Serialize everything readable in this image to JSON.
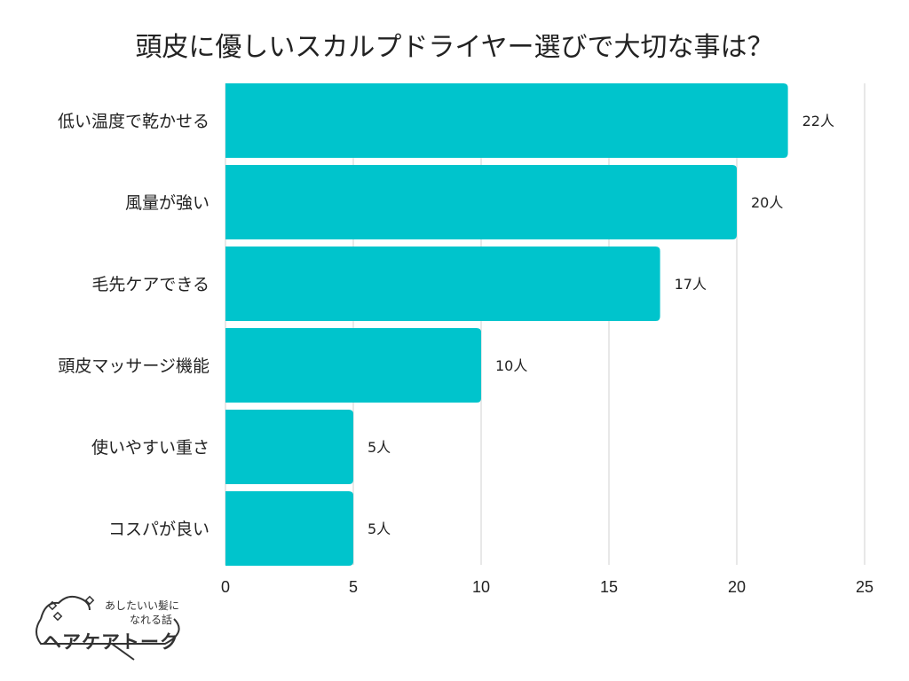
{
  "chart_data": {
    "type": "bar",
    "orientation": "horizontal",
    "title": "頭皮に優しいスカルプドライヤー選びで大切な事は？",
    "categories": [
      "低い温度で乾かせる",
      "風量が強い",
      "毛先ケアできる",
      "頭皮マッサージ機能",
      "使いやすい重さ",
      "コスパが良い"
    ],
    "values": [
      22,
      20,
      17,
      10,
      5,
      5
    ],
    "data_labels": [
      "22人",
      "20人",
      "17人",
      "10人",
      "5人",
      "5人"
    ],
    "xlim": [
      0,
      25
    ],
    "xticks": [
      "0",
      "5",
      "10",
      "15",
      "20",
      "25"
    ],
    "grid": true,
    "bar_color": "#00C4CC"
  },
  "logo": {
    "line1": "あしたいい髪に",
    "line2": "なれる話",
    "name": "ヘアケアトーク"
  }
}
